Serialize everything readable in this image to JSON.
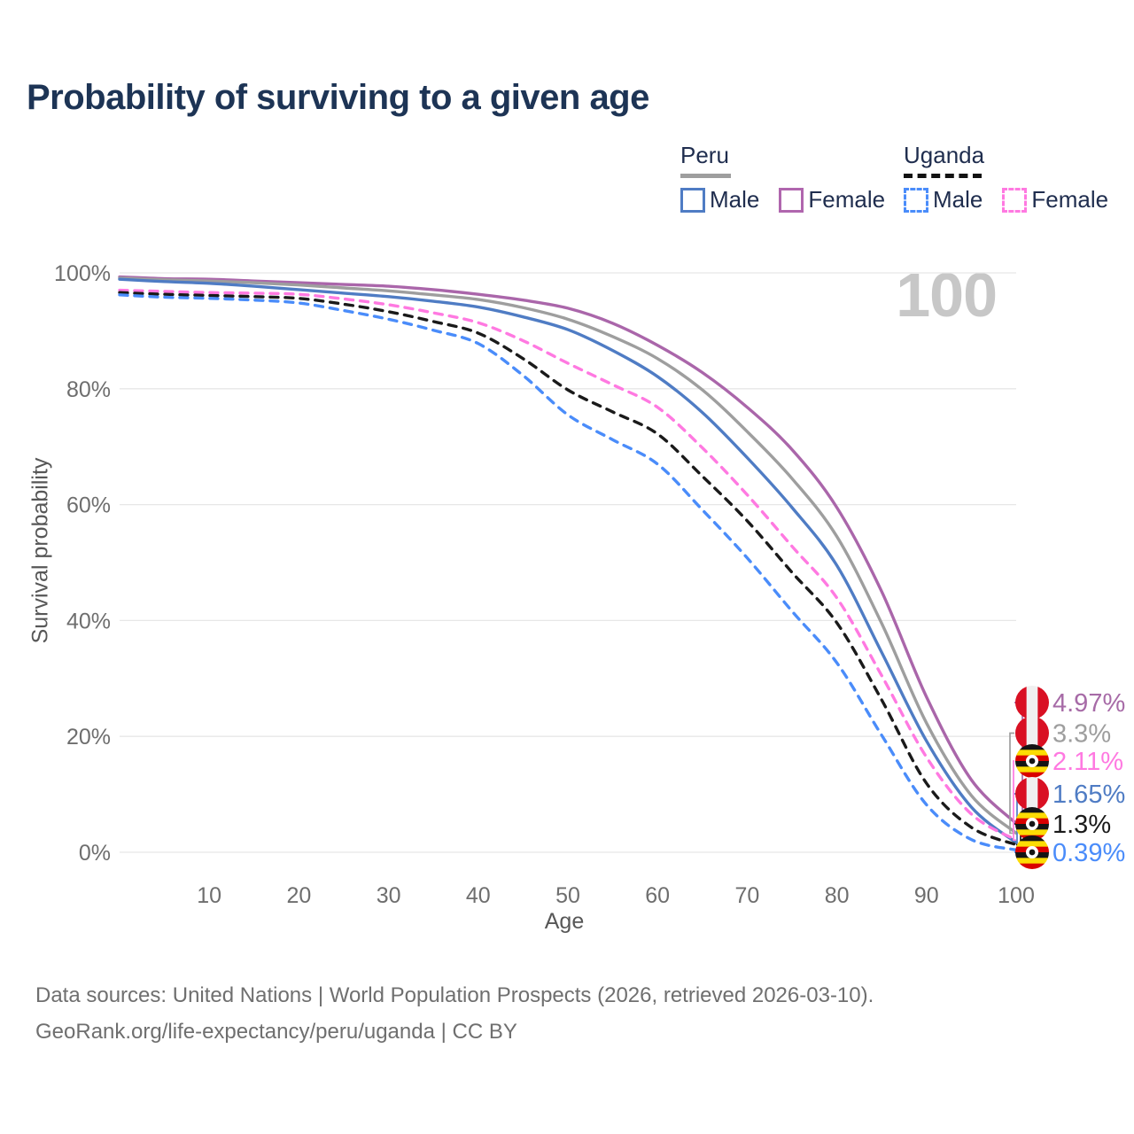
{
  "title": "Probability of surviving to a given age",
  "watermark": "100",
  "legend": {
    "peru": {
      "label": "Peru",
      "male": "Male",
      "female": "Female"
    },
    "uganda": {
      "label": "Uganda",
      "male": "Male",
      "female": "Female"
    }
  },
  "y_axis": {
    "title": "Survival probability",
    "ticks": [
      "100%",
      "80%",
      "60%",
      "40%",
      "20%",
      "0%"
    ]
  },
  "x_axis": {
    "title": "Age",
    "ticks": [
      "10",
      "20",
      "30",
      "40",
      "50",
      "60",
      "70",
      "80",
      "90",
      "100"
    ]
  },
  "footer": {
    "line1": "Data sources: United Nations | World Population Prospects (2026, retrieved 2026-03-10).",
    "line2": "GeoRank.org/life-expectancy/peru/uganda | CC BY"
  },
  "colors": {
    "title_text": "#1d3455",
    "legend_text": "#1f2d4e",
    "tick_text": "#6e6e6e",
    "axis_title_text": "#575757",
    "gridline": "#e7e7e7",
    "watermark": "#c7c7c7",
    "footer_text": "#6f6f6f",
    "peru_flag_red": "#d91023",
    "uganda_flag_yellow": "#fcdc04",
    "uganda_flag_red": "#d90000",
    "uganda_flag_black": "#141414"
  },
  "end_labels": [
    {
      "series_index": 0,
      "country": "peru",
      "series": "Peru Female",
      "value": "4.97%",
      "color": "#a76ba7"
    },
    {
      "series_index": 1,
      "country": "peru",
      "series": "Peru Total",
      "value": "3.3%",
      "color": "#9e9e9e"
    },
    {
      "series_index": 3,
      "country": "uganda",
      "series": "Uganda Female",
      "value": "2.11%",
      "color": "#ff79e1"
    },
    {
      "series_index": 2,
      "country": "peru",
      "series": "Peru Male",
      "value": "1.65%",
      "color": "#4f7cc4"
    },
    {
      "series_index": 4,
      "country": "uganda",
      "series": "Uganda Total",
      "value": "1.3%",
      "color": "#1a1a1a"
    },
    {
      "series_index": 5,
      "country": "uganda",
      "series": "Uganda Male",
      "value": "0.39%",
      "color": "#4a8cfa"
    }
  ],
  "chart_data": {
    "type": "line",
    "title": "Probability of surviving to a given age",
    "xlabel": "Age",
    "ylabel": "Survival probability",
    "xlim": [
      0,
      100
    ],
    "ylim": [
      0,
      100
    ],
    "grid": "horizontal-only",
    "legend_position": "top-right",
    "x_ticks": [
      10,
      20,
      30,
      40,
      50,
      60,
      70,
      80,
      90,
      100
    ],
    "y_ticks_pct": [
      0,
      20,
      40,
      60,
      80,
      100
    ],
    "series": [
      {
        "name": "Peru Female",
        "country": "Peru",
        "sex": "Female",
        "style": "solid",
        "color": "#aa66aa",
        "end_value_pct": 4.97,
        "points": [
          [
            0,
            99.3
          ],
          [
            5,
            99.0
          ],
          [
            10,
            98.9
          ],
          [
            15,
            98.6
          ],
          [
            20,
            98.3
          ],
          [
            25,
            98.0
          ],
          [
            30,
            97.7
          ],
          [
            35,
            97.1
          ],
          [
            40,
            96.3
          ],
          [
            45,
            95.3
          ],
          [
            50,
            93.9
          ],
          [
            55,
            91.3
          ],
          [
            60,
            87.5
          ],
          [
            65,
            82.8
          ],
          [
            70,
            76.8
          ],
          [
            75,
            69.5
          ],
          [
            80,
            59.5
          ],
          [
            85,
            45.0
          ],
          [
            90,
            26.8
          ],
          [
            95,
            12.5
          ],
          [
            100,
            4.97
          ]
        ]
      },
      {
        "name": "Peru Total",
        "country": "Peru",
        "sex": "Both",
        "style": "solid",
        "color": "#9e9e9e",
        "end_value_pct": 3.3,
        "points": [
          [
            0,
            99.1
          ],
          [
            5,
            98.8
          ],
          [
            10,
            98.6
          ],
          [
            15,
            98.3
          ],
          [
            20,
            97.9
          ],
          [
            25,
            97.4
          ],
          [
            30,
            96.9
          ],
          [
            35,
            96.2
          ],
          [
            40,
            95.4
          ],
          [
            45,
            94.0
          ],
          [
            50,
            92.0
          ],
          [
            55,
            89.0
          ],
          [
            60,
            85.2
          ],
          [
            65,
            79.8
          ],
          [
            70,
            72.6
          ],
          [
            75,
            64.5
          ],
          [
            80,
            54.5
          ],
          [
            85,
            39.5
          ],
          [
            90,
            22.3
          ],
          [
            95,
            9.8
          ],
          [
            100,
            3.3
          ]
        ]
      },
      {
        "name": "Peru Male",
        "country": "Peru",
        "sex": "Male",
        "style": "solid",
        "color": "#4f7cc4",
        "end_value_pct": 1.65,
        "points": [
          [
            0,
            98.9
          ],
          [
            5,
            98.5
          ],
          [
            10,
            98.2
          ],
          [
            15,
            97.7
          ],
          [
            20,
            97.1
          ],
          [
            25,
            96.5
          ],
          [
            30,
            95.9
          ],
          [
            35,
            95.1
          ],
          [
            40,
            94.1
          ],
          [
            45,
            92.4
          ],
          [
            50,
            90.2
          ],
          [
            55,
            86.6
          ],
          [
            60,
            82.1
          ],
          [
            65,
            75.9
          ],
          [
            70,
            68.1
          ],
          [
            75,
            59.5
          ],
          [
            80,
            49.5
          ],
          [
            85,
            34.5
          ],
          [
            90,
            19.2
          ],
          [
            95,
            7.8
          ],
          [
            100,
            1.65
          ]
        ]
      },
      {
        "name": "Uganda Female",
        "country": "Uganda",
        "sex": "Female",
        "style": "dashed",
        "color": "#ff79e1",
        "end_value_pct": 2.11,
        "points": [
          [
            0,
            97.0
          ],
          [
            5,
            96.8
          ],
          [
            10,
            96.6
          ],
          [
            15,
            96.5
          ],
          [
            20,
            96.3
          ],
          [
            25,
            95.5
          ],
          [
            30,
            94.5
          ],
          [
            35,
            93.1
          ],
          [
            40,
            91.4
          ],
          [
            45,
            88.3
          ],
          [
            50,
            84.4
          ],
          [
            55,
            80.7
          ],
          [
            60,
            76.8
          ],
          [
            65,
            69.8
          ],
          [
            70,
            61.7
          ],
          [
            75,
            52.8
          ],
          [
            80,
            43.9
          ],
          [
            85,
            30.5
          ],
          [
            90,
            16.4
          ],
          [
            95,
            6.6
          ],
          [
            100,
            2.11
          ]
        ]
      },
      {
        "name": "Uganda Total",
        "country": "Uganda",
        "sex": "Both",
        "style": "dashed",
        "color": "#1a1a1a",
        "end_value_pct": 1.3,
        "points": [
          [
            0,
            96.6
          ],
          [
            5,
            96.3
          ],
          [
            10,
            96.1
          ],
          [
            15,
            95.9
          ],
          [
            20,
            95.6
          ],
          [
            25,
            94.6
          ],
          [
            30,
            93.3
          ],
          [
            35,
            91.6
          ],
          [
            40,
            89.6
          ],
          [
            45,
            85.2
          ],
          [
            50,
            79.8
          ],
          [
            55,
            76.0
          ],
          [
            60,
            72.2
          ],
          [
            65,
            64.9
          ],
          [
            70,
            57.2
          ],
          [
            75,
            48.3
          ],
          [
            80,
            39.6
          ],
          [
            85,
            26.3
          ],
          [
            90,
            11.9
          ],
          [
            95,
            4.3
          ],
          [
            100,
            1.3
          ]
        ]
      },
      {
        "name": "Uganda Male",
        "country": "Uganda",
        "sex": "Male",
        "style": "dashed",
        "color": "#4a8cfa",
        "end_value_pct": 0.39,
        "points": [
          [
            0,
            96.2
          ],
          [
            5,
            95.8
          ],
          [
            10,
            95.6
          ],
          [
            15,
            95.3
          ],
          [
            20,
            94.8
          ],
          [
            25,
            93.5
          ],
          [
            30,
            92.0
          ],
          [
            35,
            90.1
          ],
          [
            40,
            87.8
          ],
          [
            45,
            82.3
          ],
          [
            50,
            75.5
          ],
          [
            55,
            71.2
          ],
          [
            60,
            67.0
          ],
          [
            65,
            59.1
          ],
          [
            70,
            50.8
          ],
          [
            75,
            41.6
          ],
          [
            80,
            32.7
          ],
          [
            85,
            20.2
          ],
          [
            90,
            8.2
          ],
          [
            95,
            2.2
          ],
          [
            100,
            0.39
          ]
        ]
      }
    ]
  }
}
